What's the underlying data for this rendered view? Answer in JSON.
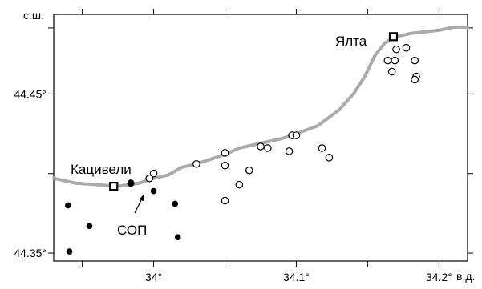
{
  "map": {
    "lat_unit_label": "с.ш.",
    "lon_unit_label": "в.д.",
    "lat_tick_labels": [
      "44.45°",
      "44.35°"
    ],
    "lon_tick_labels": [
      "34°",
      "34.1°",
      "34.2°"
    ],
    "lat_ticks": [
      44.45,
      44.35
    ],
    "lon_ticks": [
      34.0,
      34.1,
      34.2
    ],
    "lon_range": [
      33.93,
      34.22
    ],
    "lat_range": [
      44.345,
      44.5
    ],
    "coastline_color": "#aaaaaa",
    "marker_color": "#000000"
  },
  "places": [
    {
      "name": "Ялта",
      "lon": 34.168,
      "lat": 44.486
    },
    {
      "name": "Кацивели",
      "lon": 33.972,
      "lat": 44.392
    }
  ],
  "station_label": "СОП",
  "stations_open": [
    {
      "lon": 34.17,
      "lat": 44.478
    },
    {
      "lon": 34.177,
      "lat": 44.479
    },
    {
      "lon": 34.164,
      "lat": 44.471
    },
    {
      "lon": 34.169,
      "lat": 44.471
    },
    {
      "lon": 34.183,
      "lat": 44.471
    },
    {
      "lon": 34.167,
      "lat": 44.464
    },
    {
      "lon": 34.184,
      "lat": 44.461
    },
    {
      "lon": 34.183,
      "lat": 44.459
    },
    {
      "lon": 34.097,
      "lat": 44.424
    },
    {
      "lon": 34.1,
      "lat": 44.424
    },
    {
      "lon": 34.08,
      "lat": 44.416
    },
    {
      "lon": 34.075,
      "lat": 44.417
    },
    {
      "lon": 34.095,
      "lat": 44.414
    },
    {
      "lon": 34.118,
      "lat": 44.416
    },
    {
      "lon": 34.123,
      "lat": 44.41
    },
    {
      "lon": 34.05,
      "lat": 44.413
    },
    {
      "lon": 34.05,
      "lat": 44.405
    },
    {
      "lon": 34.03,
      "lat": 44.406
    },
    {
      "lon": 34.067,
      "lat": 44.402
    },
    {
      "lon": 34.06,
      "lat": 44.393
    },
    {
      "lon": 34.05,
      "lat": 44.383
    },
    {
      "lon": 34.0,
      "lat": 44.4
    },
    {
      "lon": 33.997,
      "lat": 44.397
    }
  ],
  "stations_filled": [
    {
      "lon": 33.984,
      "lat": 44.394
    },
    {
      "lon": 34.0,
      "lat": 44.389
    },
    {
      "lon": 34.015,
      "lat": 44.381
    },
    {
      "lon": 33.94,
      "lat": 44.38
    },
    {
      "lon": 33.955,
      "lat": 44.367
    },
    {
      "lon": 34.017,
      "lat": 44.36
    },
    {
      "lon": 33.941,
      "lat": 44.351
    }
  ],
  "coastline": [
    [
      33.93,
      44.397
    ],
    [
      33.945,
      44.394
    ],
    [
      33.96,
      44.393
    ],
    [
      33.975,
      44.392
    ],
    [
      33.99,
      44.394
    ],
    [
      34.0,
      44.397
    ],
    [
      34.01,
      44.399
    ],
    [
      34.02,
      44.404
    ],
    [
      34.03,
      44.406
    ],
    [
      34.04,
      44.409
    ],
    [
      34.05,
      44.412
    ],
    [
      34.06,
      44.416
    ],
    [
      34.075,
      44.419
    ],
    [
      34.09,
      44.422
    ],
    [
      34.1,
      44.425
    ],
    [
      34.115,
      44.43
    ],
    [
      34.13,
      44.44
    ],
    [
      34.14,
      44.45
    ],
    [
      34.148,
      44.461
    ],
    [
      34.155,
      44.474
    ],
    [
      34.162,
      44.482
    ],
    [
      34.17,
      44.486
    ],
    [
      34.18,
      44.488
    ],
    [
      34.19,
      44.489
    ],
    [
      34.2,
      44.49
    ],
    [
      34.21,
      44.492
    ],
    [
      34.22,
      44.492
    ]
  ]
}
